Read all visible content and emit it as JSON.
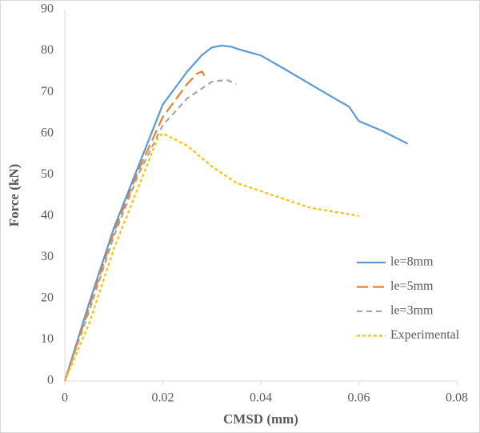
{
  "chart_data": {
    "type": "line",
    "x_label": "CMSD (mm)",
    "y_label": "Force (kN)",
    "xlim": [
      0,
      0.08
    ],
    "xticks": [
      0,
      0.02,
      0.04,
      0.06,
      0.08
    ],
    "ylim": [
      0,
      90
    ],
    "yticks": [
      0,
      10,
      20,
      30,
      40,
      50,
      60,
      70,
      80,
      90
    ],
    "grid": false,
    "legend": "right",
    "series": [
      {
        "name": "le=8mm",
        "color": "#5b9bd5",
        "line_style": "solid",
        "x": [
          0,
          0.005,
          0.01,
          0.015,
          0.02,
          0.025,
          0.028,
          0.03,
          0.032,
          0.034,
          0.036,
          0.04,
          0.045,
          0.05,
          0.055,
          0.058,
          0.06,
          0.065,
          0.07
        ],
        "values": [
          0,
          19,
          37,
          52,
          67,
          75,
          79,
          80.8,
          81.3,
          81,
          80.2,
          78.9,
          75.5,
          72,
          68.5,
          66.5,
          63,
          60.5,
          57.5
        ]
      },
      {
        "name": "le=5mm",
        "color": "#ed7d31",
        "line_style": "long-dash",
        "x": [
          0,
          0.005,
          0.01,
          0.015,
          0.02,
          0.025,
          0.027,
          0.028,
          0.0285
        ],
        "values": [
          0,
          18,
          36,
          51,
          64,
          72,
          74.5,
          75,
          74
        ]
      },
      {
        "name": "le=3mm",
        "color": "#a5a5a5",
        "line_style": "dash",
        "x": [
          0,
          0.005,
          0.01,
          0.015,
          0.02,
          0.025,
          0.03,
          0.033,
          0.035
        ],
        "values": [
          0,
          17,
          35,
          50,
          62,
          68.5,
          72.5,
          73,
          72
        ]
      },
      {
        "name": "Experimental",
        "color": "#ffc000",
        "line_style": "short-dash",
        "x": [
          0,
          0.005,
          0.01,
          0.015,
          0.019,
          0.02,
          0.025,
          0.03,
          0.035,
          0.04,
          0.05,
          0.06
        ],
        "values": [
          0,
          14,
          32,
          47,
          59,
          60,
          57,
          52,
          48,
          46,
          42,
          40
        ]
      }
    ]
  }
}
